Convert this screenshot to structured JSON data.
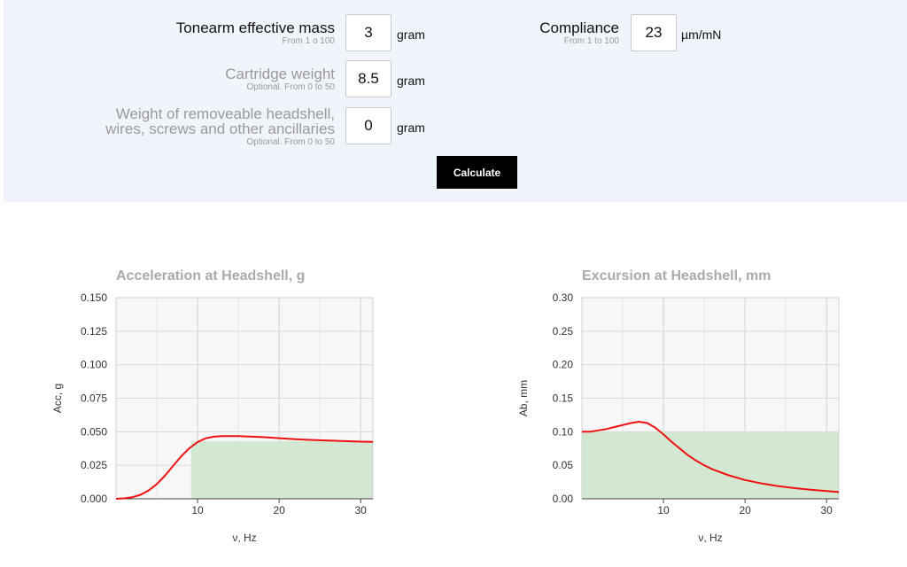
{
  "form": {
    "tonearm_mass": {
      "label": "Tonearm effective mass",
      "hint": "From 1 o 100",
      "value": "3",
      "unit": "gram"
    },
    "compliance": {
      "label": "Compliance",
      "hint": "From 1 to 100",
      "value": "23",
      "unit": "µm/mN"
    },
    "cartridge_weight": {
      "label": "Cartridge weight",
      "hint": "Optional. From 0 to 50",
      "value": "8.5",
      "unit": "gram"
    },
    "ancillaries": {
      "label_line1": "Weight of removeable headshell,",
      "label_line2": "wires, screws and other ancillaries",
      "hint": "Optional. From 0 to 50",
      "value": "0",
      "unit": "gram"
    },
    "calculate_label": "Calculate"
  },
  "colors": {
    "curve": "#ee1111",
    "band": "#d3e8d3",
    "grid": "#d9d9d9",
    "plot_bg": "#f7f7f7",
    "title": "#aaaaaa"
  },
  "chart_data": [
    {
      "type": "area",
      "title": "Acceleration at Headshell, g",
      "xlabel": "ν, Hz",
      "ylabel": "Acc, g",
      "xlim": [
        0,
        31.5
      ],
      "ylim": [
        0,
        0.15
      ],
      "xticks": [
        10,
        20,
        30
      ],
      "yticks": [
        "0.000",
        "0.025",
        "0.050",
        "0.075",
        "0.100",
        "0.125",
        "0.150"
      ],
      "grid": true,
      "series": [
        {
          "x": [
            0,
            1,
            2,
            3,
            4,
            5,
            6,
            7,
            8,
            9,
            10,
            11,
            12,
            13,
            14,
            15,
            16,
            18,
            20,
            22,
            24,
            26,
            28,
            30,
            31.5
          ],
          "y": [
            0,
            0.0003,
            0.0012,
            0.003,
            0.0062,
            0.011,
            0.0172,
            0.0245,
            0.0318,
            0.0378,
            0.0423,
            0.0451,
            0.0463,
            0.0468,
            0.0468,
            0.0467,
            0.0465,
            0.046,
            0.0452,
            0.0445,
            0.0439,
            0.0434,
            0.043,
            0.0426,
            0.0424
          ]
        }
      ],
      "band": {
        "from": 9.2,
        "to": 31.5,
        "level": 0.043
      }
    },
    {
      "type": "area",
      "title": "Excursion at Headshell, mm",
      "xlabel": "ν, Hz",
      "ylabel": "Ab, mm",
      "xlim": [
        0,
        31.5
      ],
      "ylim": [
        0,
        0.3
      ],
      "xticks": [
        10,
        20,
        30
      ],
      "yticks": [
        "0.00",
        "0.05",
        "0.10",
        "0.15",
        "0.20",
        "0.25",
        "0.30"
      ],
      "grid": true,
      "series": [
        {
          "x": [
            0,
            1,
            2,
            3,
            4,
            5,
            6,
            7,
            8,
            9,
            10,
            11,
            12,
            13,
            14,
            15,
            16,
            18,
            20,
            22,
            24,
            26,
            28,
            30,
            31.5
          ],
          "y": [
            0.1,
            0.1,
            0.102,
            0.104,
            0.107,
            0.11,
            0.113,
            0.115,
            0.113,
            0.106,
            0.096,
            0.085,
            0.075,
            0.065,
            0.057,
            0.05,
            0.044,
            0.035,
            0.028,
            0.023,
            0.019,
            0.016,
            0.0135,
            0.0115,
            0.01
          ]
        }
      ],
      "band": {
        "from": 0,
        "to": 31.5,
        "level": 0.1
      }
    }
  ]
}
